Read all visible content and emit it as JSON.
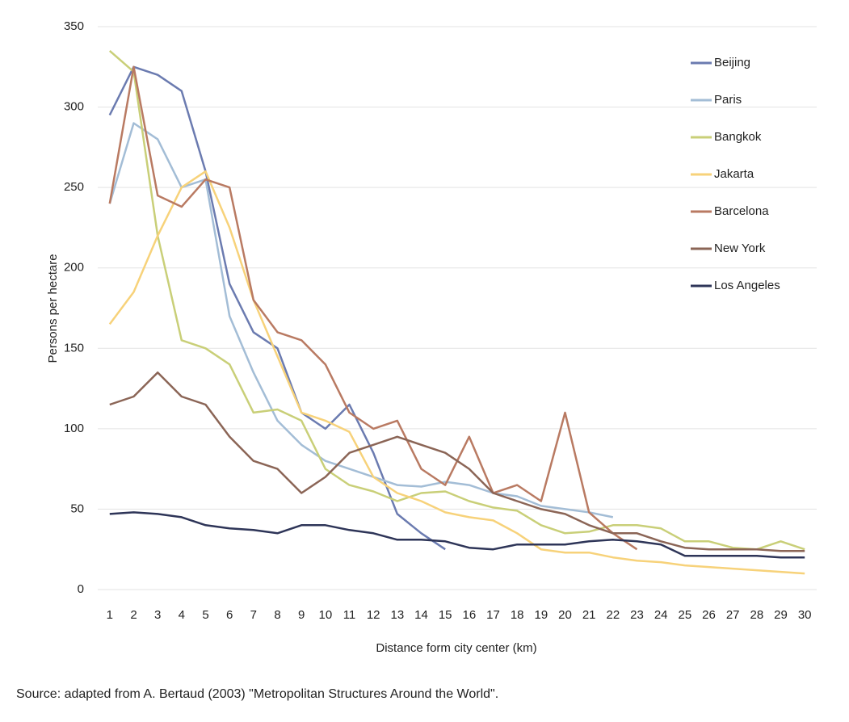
{
  "chart_data": {
    "type": "line",
    "x_label": "Distance form city center (km)",
    "y_label": "Persons per hectare",
    "source": "Source: adapted from A. Bertaud (2003) \"Metropolitan Structures Around the World\".",
    "categories": [
      1,
      2,
      3,
      4,
      5,
      6,
      7,
      8,
      9,
      10,
      11,
      12,
      13,
      14,
      15,
      16,
      17,
      18,
      19,
      20,
      21,
      22,
      23,
      24,
      25,
      26,
      27,
      28,
      29,
      30
    ],
    "ylim": [
      0,
      350
    ],
    "yticks": [
      0,
      50,
      100,
      150,
      200,
      250,
      300,
      350
    ],
    "grid": true,
    "legend": "top-right",
    "series": [
      {
        "name": "Beijing",
        "color": "#6b7bb0",
        "values": [
          295,
          325,
          320,
          310,
          260,
          190,
          160,
          150,
          110,
          100,
          115,
          85,
          47,
          35,
          25,
          null,
          null,
          null,
          null,
          null,
          null,
          null,
          null,
          null,
          null,
          null,
          null,
          null,
          null,
          null
        ]
      },
      {
        "name": "Paris",
        "color": "#a3bdd6",
        "values": [
          240,
          290,
          280,
          250,
          255,
          170,
          135,
          105,
          90,
          80,
          75,
          70,
          65,
          64,
          67,
          65,
          60,
          58,
          52,
          50,
          48,
          45,
          null,
          null,
          null,
          null,
          null,
          null,
          null,
          null
        ]
      },
      {
        "name": "Bangkok",
        "color": "#c9cf78",
        "values": [
          335,
          322,
          220,
          155,
          150,
          140,
          110,
          112,
          105,
          75,
          65,
          61,
          55,
          60,
          61,
          55,
          51,
          49,
          40,
          35,
          36,
          40,
          40,
          38,
          30,
          30,
          26,
          25,
          30,
          25
        ]
      },
      {
        "name": "Jakarta",
        "color": "#f7d27a",
        "values": [
          165,
          185,
          220,
          250,
          260,
          225,
          180,
          145,
          110,
          105,
          98,
          70,
          60,
          55,
          48,
          45,
          43,
          35,
          25,
          23,
          23,
          20,
          18,
          17,
          15,
          14,
          13,
          12,
          11,
          10
        ]
      },
      {
        "name": "Barcelona",
        "color": "#b97a62",
        "values": [
          240,
          325,
          245,
          238,
          255,
          250,
          180,
          160,
          155,
          140,
          110,
          100,
          105,
          75,
          65,
          95,
          60,
          65,
          55,
          110,
          48,
          35,
          25,
          null,
          null,
          null,
          null,
          null,
          null,
          null
        ]
      },
      {
        "name": "New York",
        "color": "#8b6556",
        "values": [
          115,
          120,
          135,
          120,
          115,
          95,
          80,
          75,
          60,
          70,
          85,
          90,
          95,
          90,
          85,
          75,
          60,
          55,
          50,
          47,
          40,
          35,
          35,
          30,
          26,
          25,
          25,
          25,
          24,
          24
        ]
      },
      {
        "name": "Los Angeles",
        "color": "#2e3558",
        "values": [
          47,
          48,
          47,
          45,
          40,
          38,
          37,
          35,
          40,
          40,
          37,
          35,
          31,
          31,
          30,
          26,
          25,
          28,
          28,
          28,
          30,
          31,
          30,
          28,
          21,
          21,
          21,
          21,
          20,
          20
        ]
      }
    ]
  }
}
